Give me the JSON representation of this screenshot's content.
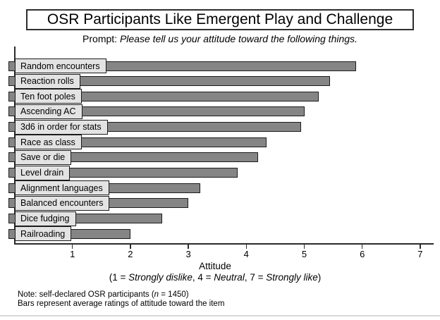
{
  "title": "OSR Participants Like Emergent Play and Challenge",
  "prompt": {
    "prefix": "Prompt: ",
    "italic_text": "Please tell us your attitude toward the following things."
  },
  "chart_data": {
    "type": "bar",
    "orientation": "horizontal",
    "title": "OSR Participants Like Emergent Play and Challenge",
    "subtitle": "Prompt: Please tell us your attitude toward the following things.",
    "categories": [
      "Random encounters",
      "Reaction rolls",
      "Ten foot poles",
      "Ascending AC",
      "3d6 in order for stats",
      "Race as class",
      "Save or die",
      "Level drain",
      "Alignment languages",
      "Balanced encounters",
      "Dice fudging",
      "Railroading"
    ],
    "values": [
      5.9,
      5.45,
      5.25,
      5.0,
      4.95,
      4.35,
      4.2,
      3.85,
      3.2,
      3.0,
      2.55,
      2.0
    ],
    "xlabel": "Attitude",
    "xlabel_note_segments": [
      {
        "t": "(1 = ",
        "i": false
      },
      {
        "t": "Strongly dislike",
        "i": true
      },
      {
        "t": ", 4 = ",
        "i": false
      },
      {
        "t": "Neutral",
        "i": true
      },
      {
        "t": ", 7 = ",
        "i": false
      },
      {
        "t": "Strongly like",
        "i": true
      },
      {
        "t": ")",
        "i": false
      }
    ],
    "xticks": [
      1,
      2,
      3,
      4,
      5,
      6,
      7
    ],
    "xlim": [
      0,
      7.25
    ],
    "grid": false,
    "legend": false,
    "bar_color": "#858585",
    "bar_border_color": "#1c1c1c",
    "label_box_color": "#e3e3e3"
  },
  "notes": {
    "line1_segments": [
      {
        "t": "Note: self-declared OSR participants (",
        "i": false
      },
      {
        "t": "n",
        "i": true
      },
      {
        "t": " = 1450)",
        "i": false
      }
    ],
    "line2": "Bars represent average ratings of attitude toward the item"
  }
}
